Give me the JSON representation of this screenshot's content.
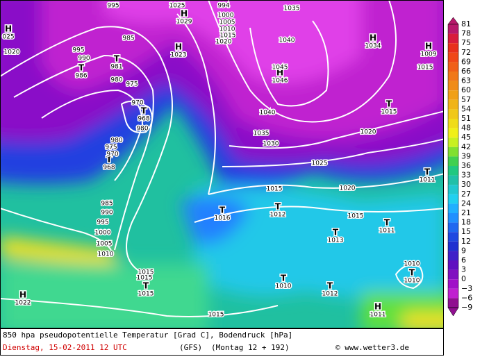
{
  "colorbar": {
    "labels": [
      "81",
      "78",
      "75",
      "72",
      "69",
      "66",
      "63",
      "60",
      "57",
      "54",
      "51",
      "48",
      "45",
      "42",
      "39",
      "36",
      "33",
      "30",
      "27",
      "24",
      "21",
      "18",
      "15",
      "12",
      "9",
      "6",
      "3",
      "0",
      "−3",
      "−6",
      "−9"
    ]
  },
  "footer": {
    "title": "850 hpa pseudopotentielle Temperatur [Grad C], Bodendruck [hPa]",
    "date": "Dienstag, 15-02-2011  12 UTC",
    "model": "(GFS)",
    "run": "(Montag 12 + 192)",
    "credit": "© www.wetter3.de"
  },
  "centers": [
    {
      "kind": "H",
      "value": "1029"
    },
    {
      "kind": "H",
      "value": "1023"
    },
    {
      "kind": "T",
      "value": "981"
    },
    {
      "kind": "T",
      "value": "986"
    },
    {
      "kind": "H",
      "value": "1034"
    },
    {
      "kind": "H",
      "value": "1009"
    },
    {
      "kind": "H",
      "value": "1046"
    },
    {
      "kind": "T",
      "value": "968"
    },
    {
      "kind": "T",
      "value": "968"
    },
    {
      "kind": "T",
      "value": "1015"
    },
    {
      "kind": "T",
      "value": "1016"
    },
    {
      "kind": "T",
      "value": "1012"
    },
    {
      "kind": "T",
      "value": "1013"
    },
    {
      "kind": "T",
      "value": "1011"
    },
    {
      "kind": "T",
      "value": "1011"
    },
    {
      "kind": "T",
      "value": "1015"
    },
    {
      "kind": "T",
      "value": "1010"
    },
    {
      "kind": "T",
      "value": "1012"
    },
    {
      "kind": "T",
      "value": "1010"
    },
    {
      "kind": "H",
      "value": "1022"
    },
    {
      "kind": "H",
      "value": "1011"
    },
    {
      "kind": "H",
      "value": "025"
    }
  ],
  "isobar_labels": [
    "995",
    "1025",
    "994",
    "1000",
    "1005",
    "1010",
    "1015",
    "1020",
    "1035",
    "1040",
    "1045",
    "1040",
    "1035",
    "1030",
    "1025",
    "1020",
    "1020",
    "1015",
    "1015",
    "1015",
    "1020",
    "985",
    "990",
    "980",
    "975",
    "970",
    "980",
    "980",
    "975",
    "970",
    "985",
    "990",
    "995",
    "1000",
    "1005",
    "1010",
    "1015",
    "1015",
    "1010",
    "1015",
    "995"
  ]
}
